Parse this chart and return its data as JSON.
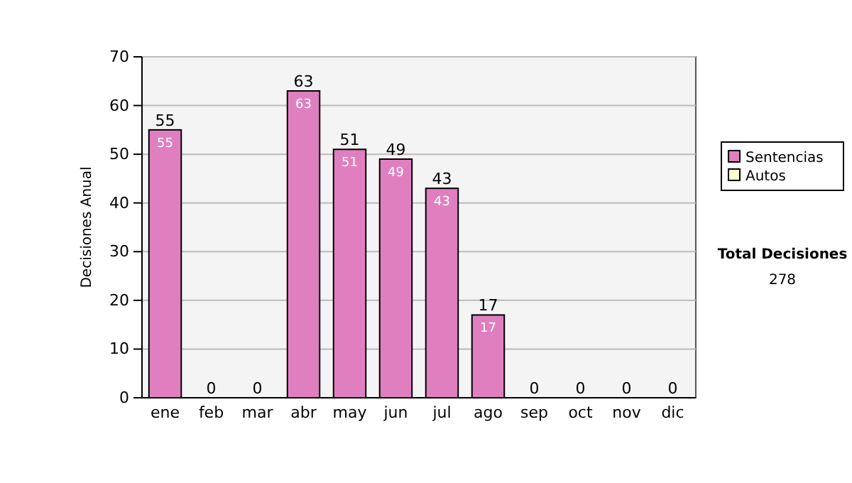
{
  "chart_data": {
    "type": "bar",
    "stacked": true,
    "categories": [
      "ene",
      "feb",
      "mar",
      "abr",
      "may",
      "jun",
      "jul",
      "ago",
      "sep",
      "oct",
      "nov",
      "dic"
    ],
    "ylabel": "Decisiones Anual",
    "ylim": [
      0,
      70
    ],
    "yticks": [
      0,
      10,
      20,
      30,
      40,
      50,
      60,
      70
    ],
    "grid": "y",
    "legend": "right",
    "series": [
      {
        "name": "Sentencias",
        "color": "#e07fc0",
        "values": [
          55,
          0,
          0,
          63,
          51,
          49,
          43,
          17,
          0,
          0,
          0,
          0
        ],
        "value_labels": [
          "55",
          null,
          null,
          "63",
          "51",
          "49",
          "43",
          "17",
          null,
          null,
          null,
          null
        ]
      },
      {
        "name": "Autos",
        "color": "#ffffcc",
        "values": [
          0,
          0,
          0,
          0,
          0,
          0,
          0,
          0,
          0,
          0,
          0,
          0
        ]
      }
    ],
    "totals": [
      "55",
      "0",
      "0",
      "63",
      "51",
      "49",
      "43",
      "17",
      "0",
      "0",
      "0",
      "0"
    ],
    "annotations": [
      "Total Decisiones",
      "278"
    ]
  }
}
